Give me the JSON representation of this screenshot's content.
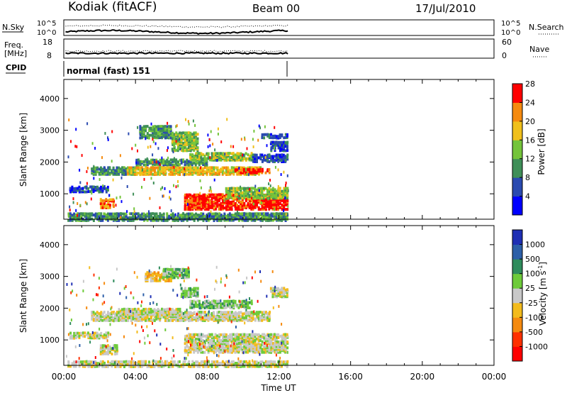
{
  "header": {
    "site": "Kodiak (fitACF)",
    "beam": "Beam 00",
    "date": "17/Jul/2010"
  },
  "noise_panel": {
    "left_label": "N.Sky",
    "right_label": "N.Search",
    "left_ticks": [
      "10^5",
      "10^0"
    ],
    "right_ticks": [
      "10^5",
      "10^0"
    ]
  },
  "freq_panel": {
    "left_label_1": "Freq.",
    "left_label_2": "[MHz]",
    "right_label": "Nave",
    "left_ticks": [
      "18",
      "8"
    ],
    "right_ticks": [
      "60",
      "0"
    ]
  },
  "cpid": {
    "label": "CPID",
    "program": "normal (fast) 151"
  },
  "chart_data": [
    {
      "type": "heatmap",
      "name": "Power",
      "ylabel": "Slant Range [km]",
      "colorbar_label": "Power [dB]",
      "ylim": [
        200,
        4600
      ],
      "yticks": [
        "1000",
        "2000",
        "3000",
        "4000"
      ],
      "xlim_hours": [
        0,
        24
      ],
      "colorbar_ticks": [
        "4",
        "8",
        "12",
        "16",
        "20",
        "24",
        "28"
      ],
      "colors": [
        "#0000ff",
        "#2a4ab0",
        "#3f8f58",
        "#74c43a",
        "#f0c01b",
        "#f58a0f",
        "#ff0000"
      ],
      "regions": [
        {
          "t0": 0.2,
          "t1": 12.5,
          "r0": 200,
          "r1": 450,
          "level": 2
        },
        {
          "t0": 6.7,
          "t1": 12.5,
          "r0": 550,
          "r1": 1050,
          "level": 6
        },
        {
          "t0": 9.0,
          "t1": 12.5,
          "r0": 900,
          "r1": 1250,
          "level": 3
        },
        {
          "t0": 2.0,
          "t1": 2.8,
          "r0": 600,
          "r1": 900,
          "level": 5
        },
        {
          "t0": 0.3,
          "t1": 2.5,
          "r0": 1100,
          "r1": 1300,
          "level": 1
        },
        {
          "t0": 1.5,
          "t1": 4.0,
          "r0": 1650,
          "r1": 1900,
          "level": 2
        },
        {
          "t0": 3.5,
          "t1": 11.0,
          "r0": 1650,
          "r1": 1900,
          "level": 4
        },
        {
          "t0": 9.5,
          "t1": 11.5,
          "r0": 1700,
          "r1": 1850,
          "level": 6
        },
        {
          "t0": 4.0,
          "t1": 8.0,
          "r0": 1950,
          "r1": 2150,
          "level": 2
        },
        {
          "t0": 7.0,
          "t1": 10.5,
          "r0": 2100,
          "r1": 2350,
          "level": 3
        },
        {
          "t0": 10.5,
          "t1": 12.5,
          "r0": 2050,
          "r1": 2300,
          "level": 1
        },
        {
          "t0": 4.2,
          "t1": 6.0,
          "r0": 2800,
          "r1": 3200,
          "level": 2
        },
        {
          "t0": 6.0,
          "t1": 7.5,
          "r0": 2400,
          "r1": 3000,
          "level": 3
        },
        {
          "t0": 11.5,
          "t1": 12.5,
          "r0": 2400,
          "r1": 2700,
          "level": 1
        },
        {
          "t0": 11.0,
          "t1": 12.5,
          "r0": 2800,
          "r1": 2950,
          "level": 1
        }
      ]
    },
    {
      "type": "heatmap",
      "name": "Velocity",
      "ylabel": "Slant Range [km]",
      "colorbar_label": "Velocity [m s^-1]",
      "ylim": [
        200,
        4600
      ],
      "yticks": [
        "1000",
        "2000",
        "3000",
        "4000"
      ],
      "xlim_hours": [
        0,
        24
      ],
      "xticks": [
        "00:00",
        "04:00",
        "08:00",
        "12:00",
        "16:00",
        "20:00",
        "00:00"
      ],
      "xlabel": "Time UT",
      "colorbar_ticks": [
        "1000",
        "500",
        "100",
        "25",
        "-25",
        "-100",
        "-500",
        "-1000"
      ],
      "colors": [
        "#1e2fb4",
        "#2c5fa8",
        "#2f8c5c",
        "#6ecb3a",
        "#c8c8c8",
        "#f3bb1c",
        "#f58a0f",
        "#ff3000",
        "#ff0000"
      ],
      "regions": [
        {
          "t0": 0.2,
          "t1": 12.5,
          "r0": 200,
          "r1": 400,
          "level": 4
        },
        {
          "t0": 6.7,
          "t1": 12.5,
          "r0": 650,
          "r1": 1250,
          "level": 4
        },
        {
          "t0": 2.0,
          "t1": 3.0,
          "r0": 600,
          "r1": 900,
          "level": 4
        },
        {
          "t0": 0.3,
          "t1": 2.5,
          "r0": 1100,
          "r1": 1300,
          "level": 4
        },
        {
          "t0": 1.5,
          "t1": 11.5,
          "r0": 1650,
          "r1": 1950,
          "level": 4
        },
        {
          "t0": 3.0,
          "t1": 6.5,
          "r0": 1850,
          "r1": 2050,
          "level": 4
        },
        {
          "t0": 7.0,
          "t1": 10.5,
          "r0": 2050,
          "r1": 2300,
          "level": 3
        },
        {
          "t0": 6.5,
          "t1": 7.5,
          "r0": 2400,
          "r1": 2700,
          "level": 3
        },
        {
          "t0": 4.5,
          "t1": 6.0,
          "r0": 2900,
          "r1": 3200,
          "level": 5
        },
        {
          "t0": 5.5,
          "t1": 7.0,
          "r0": 3000,
          "r1": 3300,
          "level": 3
        },
        {
          "t0": 11.5,
          "t1": 12.5,
          "r0": 2400,
          "r1": 2700,
          "level": 4
        }
      ]
    }
  ]
}
